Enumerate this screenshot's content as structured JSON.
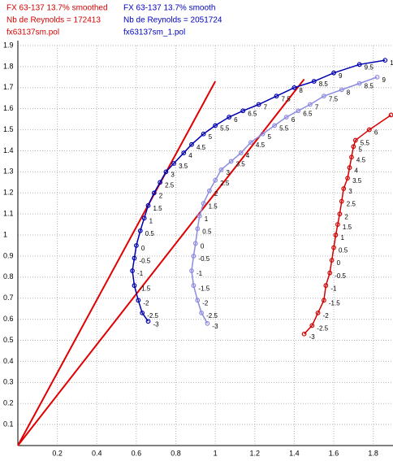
{
  "chart_data": {
    "type": "polar",
    "legend": [
      {
        "color": "#d40000",
        "lines": [
          "FX 63-137 13.7% smoothed",
          "Nb de Reynolds =  172413",
          "fx63137sm.pol"
        ]
      },
      {
        "color": "#0000c0",
        "lines": [
          "FX 63-137 13.7% smooth",
          "Nb de Reynolds =  2051724",
          "fx63137sm_1.pol"
        ]
      }
    ],
    "xlim": [
      0,
      1.9
    ],
    "ylim": [
      0,
      1.9
    ],
    "xticks": [
      0.2,
      0.4,
      0.6,
      0.8,
      1,
      1.2,
      1.4,
      1.6,
      1.8
    ],
    "yticks": [
      0.1,
      0.2,
      0.3,
      0.4,
      0.5,
      0.6,
      0.7,
      0.8,
      0.9,
      1,
      1.1,
      1.2,
      1.3,
      1.4,
      1.5,
      1.6,
      1.7,
      1.8,
      1.9
    ],
    "grid": true,
    "series": [
      {
        "color": "#0000b0",
        "x": [
          0.66,
          0.63,
          0.61,
          0.59,
          0.58,
          0.59,
          0.6,
          0.62,
          0.64,
          0.66,
          0.69,
          0.72,
          0.75,
          0.79,
          0.84,
          0.88,
          0.94,
          1.0,
          1.07,
          1.14,
          1.22,
          1.31,
          1.4,
          1.5,
          1.6,
          1.73,
          1.86
        ],
        "values": [
          0.59,
          0.63,
          0.69,
          0.76,
          0.83,
          0.89,
          0.95,
          1.02,
          1.08,
          1.14,
          1.2,
          1.25,
          1.3,
          1.34,
          1.39,
          1.43,
          1.48,
          1.52,
          1.56,
          1.59,
          1.62,
          1.66,
          1.7,
          1.73,
          1.77,
          1.81,
          1.83
        ],
        "labels": [
          -3,
          -2.5,
          -2,
          -1.5,
          -1,
          -0.5,
          0,
          0.5,
          1,
          1.5,
          2,
          2.5,
          3,
          3.5,
          4,
          4.5,
          5,
          5.5,
          6,
          6.5,
          7,
          7.5,
          8,
          8.5,
          9,
          9.5,
          10
        ]
      },
      {
        "color": "#8c8ce0",
        "x": [
          0.96,
          0.93,
          0.91,
          0.89,
          0.88,
          0.89,
          0.9,
          0.91,
          0.92,
          0.94,
          0.97,
          1.0,
          1.03,
          1.08,
          1.13,
          1.18,
          1.24,
          1.3,
          1.36,
          1.42,
          1.48,
          1.55,
          1.64,
          1.73,
          1.82
        ],
        "values": [
          0.58,
          0.63,
          0.69,
          0.76,
          0.83,
          0.9,
          0.96,
          1.03,
          1.09,
          1.15,
          1.21,
          1.26,
          1.31,
          1.35,
          1.39,
          1.44,
          1.48,
          1.52,
          1.56,
          1.59,
          1.62,
          1.66,
          1.69,
          1.72,
          1.75
        ],
        "labels": [
          -3,
          -2.5,
          -2,
          -1.5,
          -1,
          -0.5,
          0,
          0.5,
          1,
          1.5,
          2,
          2.5,
          3,
          3.5,
          4,
          4.5,
          5,
          5.5,
          6,
          6.5,
          7,
          7.5,
          8,
          8.5,
          9
        ]
      },
      {
        "color": "#d40000",
        "x": [
          1.45,
          1.49,
          1.52,
          1.55,
          1.56,
          1.58,
          1.59,
          1.6,
          1.61,
          1.62,
          1.63,
          1.64,
          1.65,
          1.67,
          1.68,
          1.69,
          1.7,
          1.71,
          1.78,
          1.89
        ],
        "values": [
          0.53,
          0.57,
          0.63,
          0.69,
          0.76,
          0.82,
          0.88,
          0.94,
          1.0,
          1.05,
          1.1,
          1.16,
          1.22,
          1.27,
          1.32,
          1.37,
          1.42,
          1.45,
          1.5,
          1.57
        ],
        "labels": [
          -3,
          -2.5,
          -2,
          -1.5,
          -1,
          -0.5,
          0,
          0.5,
          1,
          1.5,
          2,
          2.5,
          3,
          3.5,
          4,
          4.5,
          5,
          5.5,
          6,
          6.5
        ]
      }
    ],
    "tangents": [
      {
        "color": "#e00000",
        "x": [
          0,
          1.0
        ],
        "values": [
          0,
          1.73
        ]
      },
      {
        "color": "#e00000",
        "x": [
          0,
          1.45
        ],
        "values": [
          0,
          1.74
        ]
      }
    ]
  }
}
